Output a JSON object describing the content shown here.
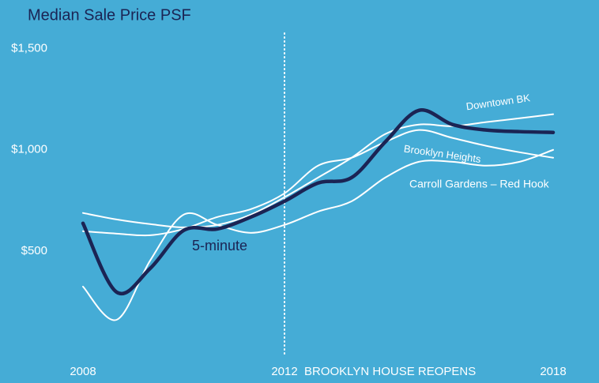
{
  "chart_data": {
    "type": "line",
    "title": "Median Sale Price PSF",
    "annotation": "BROOKLYN HOUSE REOPENS",
    "categories": [
      "2008",
      null,
      null,
      null,
      null,
      null,
      "2012",
      null,
      null,
      null,
      null,
      null,
      null,
      null,
      "2018"
    ],
    "ylim": [
      0,
      1600
    ],
    "yticks": [
      {
        "value": 500,
        "label": "$500"
      },
      {
        "value": 1000,
        "label": "$1,000"
      },
      {
        "value": 1500,
        "label": "$1,500"
      }
    ],
    "grid": false,
    "series": [
      {
        "name": "Downtown BK",
        "color": "#ffffff",
        "values": [
          688,
          656,
          633,
          617,
          629,
          680,
          766,
          863,
          961,
          1078,
          1125,
          1117,
          1137,
          1156,
          1176
        ]
      },
      {
        "name": "Brooklyn Heights",
        "color": "#ffffff",
        "values": [
          598,
          586,
          578,
          609,
          668,
          707,
          785,
          922,
          961,
          1039,
          1098,
          1059,
          1020,
          988,
          961
        ]
      },
      {
        "name": "Carroll Gardens – Red Hook",
        "color": "#ffffff",
        "values": [
          324,
          160,
          453,
          680,
          629,
          590,
          629,
          695,
          746,
          863,
          941,
          941,
          922,
          941,
          1000
        ]
      },
      {
        "name": "5-minute",
        "color": "#1b2454",
        "values": [
          637,
          297,
          414,
          602,
          609,
          668,
          746,
          836,
          863,
          1039,
          1195,
          1125,
          1098,
          1090,
          1086
        ]
      }
    ]
  }
}
